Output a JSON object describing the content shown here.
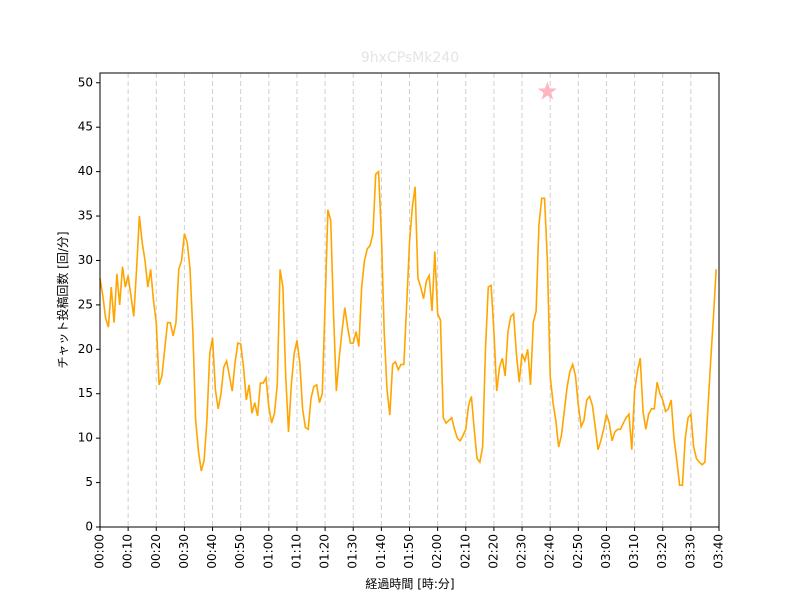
{
  "chart_data": {
    "type": "line",
    "title": "9hxCPsMk240",
    "xlabel": "経過時間 [時:分]",
    "ylabel": "チャット投稿回数 [回/分]",
    "x": [
      0,
      1,
      2,
      3,
      4,
      5,
      6,
      7,
      8,
      9,
      10,
      11,
      12,
      13,
      14,
      15,
      16,
      17,
      18,
      19,
      20,
      21,
      22,
      23,
      24,
      25,
      26,
      27,
      28,
      29,
      30,
      31,
      32,
      33,
      34,
      35,
      36,
      37,
      38,
      39,
      40,
      41,
      42,
      43,
      44,
      45,
      46,
      47,
      48,
      49,
      50,
      51,
      52,
      53,
      54,
      55,
      56,
      57,
      58,
      59,
      60,
      61,
      62,
      63,
      64,
      65,
      66,
      67,
      68,
      69,
      70,
      71,
      72,
      73,
      74,
      75,
      76,
      77,
      78,
      79,
      80,
      81,
      82,
      83,
      84,
      85,
      86,
      87,
      88,
      89,
      90,
      91,
      92,
      93,
      94,
      95,
      96,
      97,
      98,
      99,
      100,
      101,
      102,
      103,
      104,
      105,
      106,
      107,
      108,
      109,
      110,
      111,
      112,
      113,
      114,
      115,
      116,
      117,
      118,
      119,
      120,
      121,
      122,
      123,
      124,
      125,
      126,
      127,
      128,
      129,
      130,
      131,
      132,
      133,
      134,
      135,
      136,
      137,
      138,
      139,
      140,
      141,
      142,
      143,
      144,
      145,
      146,
      147,
      148,
      149,
      150,
      151,
      152,
      153,
      154,
      155,
      156,
      157,
      158,
      159,
      160,
      161,
      162,
      163,
      164,
      165,
      166,
      167,
      168,
      169,
      170,
      171,
      172,
      173,
      174,
      175,
      176,
      177,
      178,
      179,
      180,
      181,
      182,
      183,
      184,
      185,
      186,
      187,
      188,
      189,
      190,
      191,
      192,
      193,
      194,
      195,
      196,
      197,
      198,
      199,
      200,
      201,
      202,
      203,
      204,
      205,
      206,
      207,
      208,
      209,
      210,
      211,
      212,
      213,
      214,
      215,
      216,
      217,
      218,
      219
    ],
    "series": [
      {
        "color": "#ffa500",
        "values": [
          28,
          26,
          23.5,
          22.5,
          27,
          23,
          28.5,
          25,
          29.3,
          27,
          28.3,
          26,
          23.7,
          29,
          35,
          32,
          30,
          27,
          29,
          25.5,
          23,
          16,
          17,
          20,
          23,
          23,
          21.5,
          23,
          29,
          30,
          33,
          32,
          29,
          22,
          12,
          8.5,
          6.3,
          7.5,
          12,
          19.5,
          21.3,
          15.5,
          13.3,
          15,
          18,
          18.7,
          17,
          15.3,
          18.5,
          20.7,
          20.6,
          18,
          14.3,
          16,
          12.8,
          14,
          12.5,
          16.2,
          16.2,
          16.8,
          13.5,
          11.7,
          12.8,
          16,
          29,
          27,
          17,
          10.7,
          16,
          19.5,
          21,
          18.5,
          13.3,
          11.2,
          11,
          14.5,
          15.8,
          16,
          14,
          15,
          25,
          35.7,
          34.5,
          24,
          15.3,
          19,
          22,
          24.7,
          22.5,
          20.7,
          20.7,
          22,
          20.3,
          27,
          30,
          31.3,
          31.7,
          33,
          39.7,
          40,
          33,
          22,
          15.5,
          12.6,
          18.3,
          18.6,
          17.7,
          18.3,
          18.3,
          25,
          32,
          36,
          38.3,
          28,
          27,
          25.7,
          27.7,
          28.3,
          24.3,
          31,
          24,
          23.3,
          12.3,
          11.7,
          12,
          12.3,
          11,
          10,
          9.7,
          10.3,
          11,
          13.7,
          14.7,
          11,
          7.7,
          7.3,
          9,
          20,
          27,
          27.2,
          22,
          15.3,
          18,
          19,
          17,
          22,
          23.7,
          24,
          19.5,
          16.3,
          19.5,
          18.7,
          20,
          16,
          23,
          24.3,
          34,
          37,
          37,
          30,
          17,
          14,
          12,
          9,
          10.3,
          13,
          15.7,
          17.5,
          18.3,
          17,
          13.7,
          11.3,
          12,
          14.3,
          14.7,
          13.7,
          11.3,
          8.7,
          9.7,
          11,
          12.7,
          11.7,
          9.7,
          10.7,
          11,
          11,
          11.7,
          12.3,
          12.7,
          8.7,
          15.3,
          17.5,
          19,
          13,
          11,
          12.7,
          13.3,
          13.3,
          16.3,
          15,
          14.3,
          13,
          13.3,
          14.3,
          10,
          7.5,
          4.7,
          4.7,
          10,
          12.3,
          12.7,
          9,
          7.7,
          7.3,
          7,
          7.3,
          13,
          18.5,
          23.5,
          29
        ]
      }
    ],
    "highlight": {
      "x": 159,
      "y": 49,
      "color": "#ffb6c1"
    },
    "xlim": [
      0,
      220
    ],
    "xticks": [
      {
        "value": 0,
        "label": "00:00"
      },
      {
        "value": 10,
        "label": "00:10"
      },
      {
        "value": 20,
        "label": "00:20"
      },
      {
        "value": 30,
        "label": "00:30"
      },
      {
        "value": 40,
        "label": "00:40"
      },
      {
        "value": 50,
        "label": "00:50"
      },
      {
        "value": 60,
        "label": "01:00"
      },
      {
        "value": 70,
        "label": "01:10"
      },
      {
        "value": 80,
        "label": "01:20"
      },
      {
        "value": 90,
        "label": "01:30"
      },
      {
        "value": 100,
        "label": "01:40"
      },
      {
        "value": 110,
        "label": "01:50"
      },
      {
        "value": 120,
        "label": "02:00"
      },
      {
        "value": 130,
        "label": "02:10"
      },
      {
        "value": 140,
        "label": "02:20"
      },
      {
        "value": 150,
        "label": "02:30"
      },
      {
        "value": 160,
        "label": "02:40"
      },
      {
        "value": 170,
        "label": "02:50"
      },
      {
        "value": 180,
        "label": "03:00"
      },
      {
        "value": 190,
        "label": "03:10"
      },
      {
        "value": 200,
        "label": "03:20"
      },
      {
        "value": 210,
        "label": "03:30"
      },
      {
        "value": 220,
        "label": "03:40"
      }
    ],
    "ylim": [
      0,
      51.1
    ],
    "yticks": [
      0,
      5,
      10,
      15,
      20,
      25,
      30,
      35,
      40,
      45,
      50
    ],
    "xgrid": true
  }
}
